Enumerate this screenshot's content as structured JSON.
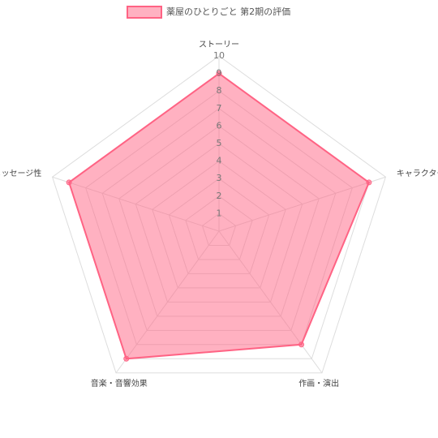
{
  "chart_data": {
    "type": "radar",
    "categories": [
      "ストーリー",
      "キャラクター",
      "作画・演出",
      "音楽・音響効果",
      "メッセージ性"
    ],
    "series": [
      {
        "name": "薬屋のひとりごと 第2期の評価",
        "color": "#ff6384",
        "values": [
          9,
          9,
          8,
          9,
          9
        ]
      }
    ],
    "rlim": [
      0,
      10
    ],
    "rticks": [
      1,
      2,
      3,
      4,
      5,
      6,
      7,
      8,
      9,
      10
    ],
    "legend": "top"
  }
}
